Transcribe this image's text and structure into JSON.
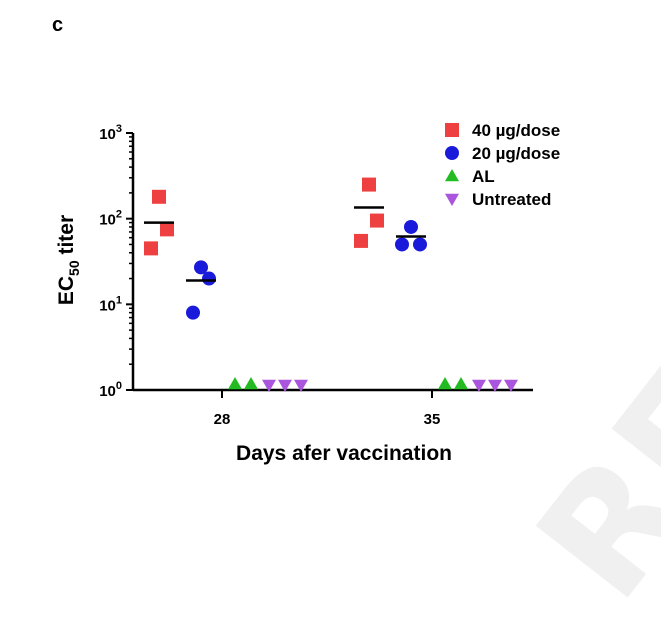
{
  "panel_label": "c",
  "watermark": "REVIEW",
  "chart_data": {
    "type": "scatter",
    "title": "",
    "xlabel": "Days afer vaccination",
    "ylabel_main": "EC",
    "ylabel_sub": "50",
    "ylabel_rest": " titer",
    "yscale": "log",
    "ylim": [
      1,
      1000
    ],
    "y_ticks": [
      {
        "value": 1,
        "base": "10",
        "exp": "0"
      },
      {
        "value": 10,
        "base": "10",
        "exp": "1"
      },
      {
        "value": 100,
        "base": "10",
        "exp": "2"
      },
      {
        "value": 1000,
        "base": "10",
        "exp": "3"
      }
    ],
    "categories": [
      "28",
      "35"
    ],
    "legend_position": "top-right",
    "series": [
      {
        "name": "40 µg/dose",
        "marker": "square",
        "color": "#ee4040",
        "offset": -1.5,
        "points": {
          "28": [
            180,
            75,
            45
          ],
          "35": [
            250,
            95,
            55
          ]
        },
        "means": {
          "28": 90,
          "35": 135
        }
      },
      {
        "name": "20 µg/dose",
        "marker": "circle",
        "color": "#1a1adb",
        "offset": -0.5,
        "points": {
          "28": [
            27,
            20,
            8
          ],
          "35": [
            80,
            50,
            50
          ]
        },
        "means": {
          "28": 19,
          "35": 62
        }
      },
      {
        "name": "AL",
        "marker": "triangle-up",
        "color": "#22bb22",
        "offset": 0.5,
        "points": {
          "28": [
            1,
            1
          ],
          "35": [
            1,
            1
          ]
        },
        "means": {}
      },
      {
        "name": "Untreated",
        "marker": "triangle-down",
        "color": "#aa55dd",
        "offset": 1.5,
        "points": {
          "28": [
            1,
            1,
            1
          ],
          "35": [
            1,
            1,
            1
          ]
        },
        "means": {}
      }
    ]
  }
}
